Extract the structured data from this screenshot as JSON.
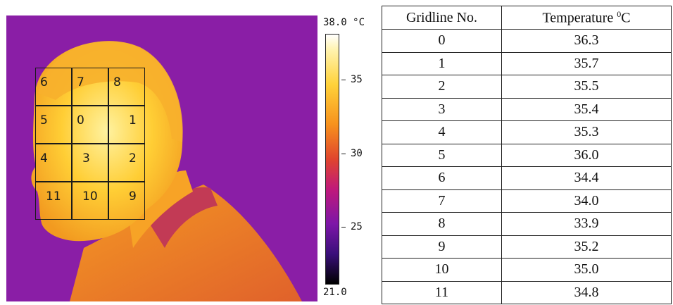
{
  "thermal_image": {
    "grid_labels": [
      "6",
      "7",
      "8",
      "5",
      "0",
      "1",
      "4",
      "3",
      "2",
      "11",
      "10",
      "9"
    ]
  },
  "color_scale": {
    "max_label": "38.0 °C",
    "min_label": "21.0",
    "ticks": [
      "35",
      "30",
      "25"
    ],
    "colors": [
      "#ffffff",
      "#ffd23a",
      "#e0452d",
      "#7d16a8",
      "#000000"
    ]
  },
  "table": {
    "headers": [
      "Gridline No.",
      "Temperature",
      "0",
      "C"
    ],
    "rows": [
      [
        "0",
        "36.3"
      ],
      [
        "1",
        "35.7"
      ],
      [
        "2",
        "35.5"
      ],
      [
        "3",
        "35.4"
      ],
      [
        "4",
        "35.3"
      ],
      [
        "5",
        "36.0"
      ],
      [
        "6",
        "34.4"
      ],
      [
        "7",
        "34.0"
      ],
      [
        "8",
        "33.9"
      ],
      [
        "9",
        "35.2"
      ],
      [
        "10",
        "35.0"
      ],
      [
        "11",
        "34.8"
      ]
    ]
  }
}
